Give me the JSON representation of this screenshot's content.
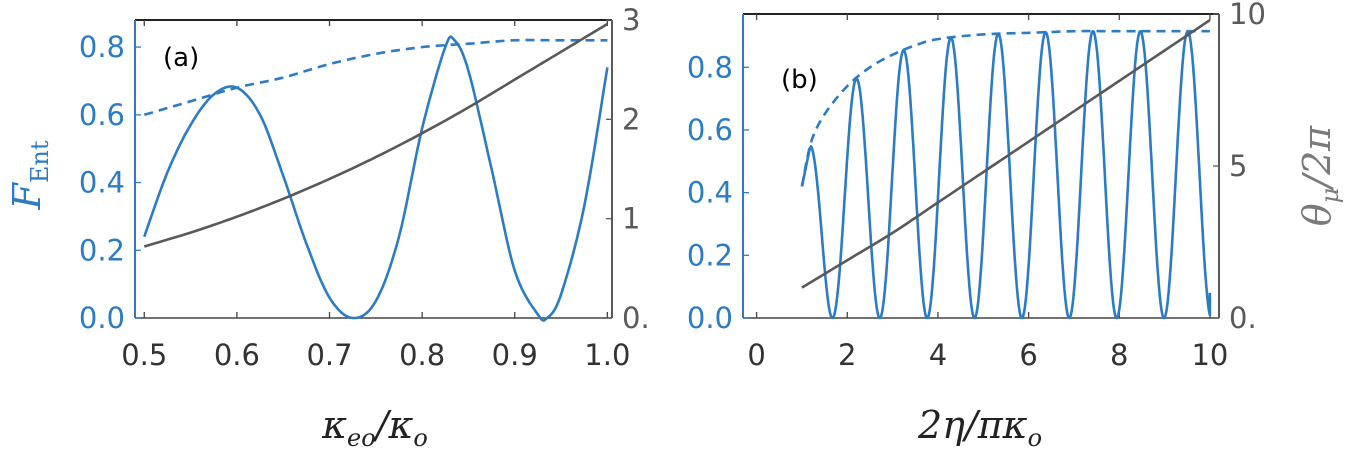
{
  "chart_data": [
    {
      "type": "line",
      "panel_label": "(a)",
      "xlabel": "κ_eo/κ_o",
      "xlabel_parts": {
        "main": "κ",
        "main_sub": "eo",
        "slash": "/",
        "den": "κ",
        "den_sub": "o"
      },
      "ylabel": "F_Ent",
      "ylabel_parts": {
        "main": "F",
        "sub": "Ent"
      },
      "xlim": [
        0.49,
        1.005
      ],
      "ylim_left": [
        0,
        0.88
      ],
      "ylim_right": [
        0,
        3
      ],
      "x_ticks": [
        0.5,
        0.6,
        0.7,
        0.8,
        0.9,
        1.0
      ],
      "x_tick_labels": [
        "0.5",
        "0.6",
        "0.7",
        "0.8",
        "0.9",
        "1.0"
      ],
      "y_left_ticks": [
        0.0,
        0.2,
        0.4,
        0.6,
        0.8
      ],
      "y_left_tick_labels": [
        "0.0",
        "0.2",
        "0.4",
        "0.6",
        "0.8"
      ],
      "y_right_ticks": [
        0,
        1,
        2,
        3
      ],
      "y_right_tick_labels": [
        "0.",
        "1",
        "2",
        "3"
      ],
      "colors": {
        "left_axis": "#2b7cc4",
        "right_axis": "#5a5a5a",
        "fidelity": "#2b7cc4",
        "phase": "#595959"
      },
      "series": [
        {
          "axis": "left",
          "style": "solid",
          "x": [
            0.5,
            0.525,
            0.55,
            0.575,
            0.6,
            0.625,
            0.65,
            0.675,
            0.7,
            0.725,
            0.75,
            0.775,
            0.8,
            0.825,
            0.835,
            0.85,
            0.875,
            0.9,
            0.925,
            0.935,
            0.95,
            0.975,
            1.0
          ],
          "y": [
            0.24,
            0.43,
            0.57,
            0.66,
            0.68,
            0.6,
            0.42,
            0.22,
            0.06,
            0.0,
            0.05,
            0.24,
            0.56,
            0.8,
            0.82,
            0.73,
            0.44,
            0.14,
            0.01,
            0.0,
            0.07,
            0.33,
            0.74
          ]
        },
        {
          "axis": "left",
          "style": "dashed",
          "x": [
            0.5,
            0.55,
            0.6,
            0.65,
            0.7,
            0.75,
            0.8,
            0.85,
            0.9,
            0.95,
            1.0
          ],
          "y": [
            0.6,
            0.64,
            0.68,
            0.71,
            0.75,
            0.78,
            0.8,
            0.81,
            0.82,
            0.82,
            0.82
          ]
        },
        {
          "axis": "right",
          "style": "solid",
          "x": [
            0.5,
            0.55,
            0.6,
            0.65,
            0.7,
            0.75,
            0.8,
            0.85,
            0.9,
            0.95,
            1.0
          ],
          "y": [
            0.72,
            0.86,
            1.02,
            1.2,
            1.4,
            1.62,
            1.86,
            2.12,
            2.4,
            2.68,
            2.96
          ]
        }
      ]
    },
    {
      "type": "line",
      "panel_label": "(b)",
      "xlabel": "2η/πκ_o",
      "xlabel_parts": {
        "main": "2η",
        "slash": "/",
        "den": "πκ",
        "den_sub": "o"
      },
      "ylabel": "θ_μ/2π",
      "ylabel_parts": {
        "main": "θ",
        "sub": "μ",
        "rest": "/2π"
      },
      "xlim": [
        -0.3,
        10.2
      ],
      "ylim_left": [
        0,
        0.97
      ],
      "ylim_right": [
        0,
        10
      ],
      "x_ticks": [
        0,
        2,
        4,
        6,
        8,
        10
      ],
      "x_tick_labels": [
        "0",
        "2",
        "4",
        "6",
        "8",
        "10"
      ],
      "y_left_ticks": [
        0.0,
        0.2,
        0.4,
        0.6,
        0.8
      ],
      "y_left_tick_labels": [
        "0.0",
        "0.2",
        "0.4",
        "0.6",
        "0.8"
      ],
      "y_right_ticks": [
        0,
        5,
        10
      ],
      "y_right_tick_labels": [
        "0.",
        "5",
        "10"
      ],
      "colors": {
        "left_axis": "#2b7cc4",
        "right_axis": "#5a5a5a",
        "fidelity": "#2b7cc4",
        "phase": "#595959"
      },
      "series": [
        {
          "axis": "left",
          "style": "solid",
          "osc": {
            "x_start": 1.0,
            "x_end": 10.0,
            "period": 1.045,
            "first_peak": 1.15,
            "peak_envelope": "dashed",
            "min": 0.0,
            "start_value": 0.42,
            "end_value": 0.08
          }
        },
        {
          "axis": "left",
          "style": "dashed",
          "x": [
            1.0,
            1.2,
            1.5,
            2.0,
            2.5,
            3.0,
            3.5,
            4.0,
            5.0,
            6.0,
            7.0,
            8.0,
            9.0,
            10.0
          ],
          "y": [
            0.42,
            0.56,
            0.65,
            0.74,
            0.8,
            0.84,
            0.87,
            0.89,
            0.905,
            0.91,
            0.915,
            0.915,
            0.915,
            0.915
          ]
        },
        {
          "axis": "right",
          "style": "solid",
          "x": [
            1.0,
            2.0,
            3.0,
            4.0,
            5.0,
            6.0,
            7.0,
            8.0,
            9.0,
            10.0
          ],
          "y": [
            1.0,
            1.9,
            2.8,
            3.8,
            4.8,
            5.8,
            6.8,
            7.8,
            8.8,
            9.8
          ]
        }
      ]
    }
  ]
}
